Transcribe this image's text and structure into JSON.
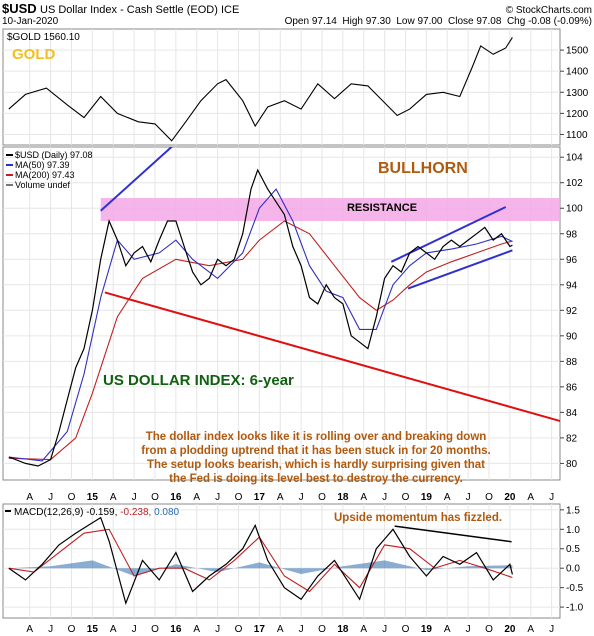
{
  "header": {
    "ticker": "$USD",
    "name": "US Dollar Index - Cash Settle (EOD) ICE",
    "date": "10-Jan-2020",
    "ohlc": "Open 97.14  High 97.30  Low 97.00  Close 97.08  Chg -0.08 (-0.09%)",
    "source": "© StockCharts.com"
  },
  "colors": {
    "price": "#000000",
    "ma50": "#3030c0",
    "ma200": "#c02020",
    "trend_red": "#e01010",
    "trend_blue": "#3030d0",
    "resistance_band": "#f5a8e6",
    "annotation_orange": "#b05a10",
    "title_green": "#106010",
    "gold_label": "#f0c020",
    "macd_signal": "#2a6ab0",
    "grid": "#e6e6e6"
  },
  "chart_data": [
    {
      "panel": "gold",
      "type": "line",
      "legend": "$GOLD 1560.10",
      "label": "GOLD",
      "yticks": [
        1100,
        1200,
        1300,
        1400,
        1500
      ],
      "ylim": [
        1050,
        1600
      ],
      "series": [
        {
          "name": "$GOLD",
          "x": [
            2014.0,
            2014.2,
            2014.45,
            2014.7,
            2014.9,
            2015.1,
            2015.3,
            2015.55,
            2015.75,
            2015.95,
            2016.1,
            2016.3,
            2016.5,
            2016.6,
            2016.8,
            2016.95,
            2017.1,
            2017.3,
            2017.5,
            2017.7,
            2017.9,
            2018.1,
            2018.3,
            2018.45,
            2018.65,
            2018.8,
            2019.0,
            2019.2,
            2019.4,
            2019.55,
            2019.65,
            2019.8,
            2019.95,
            2020.03
          ],
          "values": [
            1220,
            1290,
            1320,
            1240,
            1180,
            1280,
            1200,
            1160,
            1150,
            1070,
            1150,
            1260,
            1340,
            1360,
            1260,
            1140,
            1230,
            1260,
            1220,
            1340,
            1270,
            1340,
            1330,
            1270,
            1190,
            1220,
            1290,
            1300,
            1280,
            1420,
            1520,
            1480,
            1510,
            1560
          ]
        }
      ]
    },
    {
      "panel": "usd",
      "type": "line",
      "legend": [
        "$USD (Daily) 97.08",
        "MA(50) 97.39",
        "MA(200) 97.43",
        "Volume undef"
      ],
      "yticks": [
        80,
        82,
        84,
        86,
        88,
        90,
        92,
        94,
        96,
        98,
        100,
        102,
        104
      ],
      "ylim": [
        78.7,
        104.8
      ],
      "series": [
        {
          "name": "$USD (Daily)",
          "x": [
            2014.0,
            2014.2,
            2014.35,
            2014.5,
            2014.6,
            2014.7,
            2014.8,
            2014.9,
            2015.0,
            2015.1,
            2015.2,
            2015.3,
            2015.4,
            2015.5,
            2015.6,
            2015.7,
            2015.8,
            2015.9,
            2016.0,
            2016.1,
            2016.2,
            2016.3,
            2016.4,
            2016.5,
            2016.6,
            2016.7,
            2016.8,
            2016.9,
            2016.98,
            2017.1,
            2017.2,
            2017.3,
            2017.4,
            2017.5,
            2017.6,
            2017.7,
            2017.8,
            2017.9,
            2018.0,
            2018.1,
            2018.2,
            2018.3,
            2018.4,
            2018.5,
            2018.6,
            2018.7,
            2018.8,
            2018.9,
            2019.0,
            2019.1,
            2019.2,
            2019.3,
            2019.4,
            2019.5,
            2019.6,
            2019.7,
            2019.8,
            2019.9,
            2020.0,
            2020.03
          ],
          "values": [
            80.5,
            80.0,
            79.8,
            80.3,
            82.5,
            85.0,
            87.5,
            89.0,
            92.0,
            96.0,
            99.0,
            97.5,
            95.5,
            96.5,
            97.0,
            95.8,
            97.5,
            99.0,
            99.0,
            97.0,
            95.0,
            94.0,
            94.5,
            96.0,
            95.5,
            96.0,
            98.0,
            101.5,
            103.0,
            101.5,
            100.5,
            99.5,
            97.0,
            95.5,
            93.0,
            92.5,
            94.0,
            93.0,
            92.5,
            90.0,
            89.5,
            89.0,
            91.5,
            94.5,
            95.5,
            95.0,
            96.5,
            97.0,
            96.5,
            96.0,
            97.0,
            97.5,
            97.0,
            97.5,
            98.0,
            98.5,
            97.5,
            98.0,
            97.0,
            97.1
          ]
        },
        {
          "name": "MA(50)",
          "x": [
            2014.0,
            2014.4,
            2014.7,
            2014.9,
            2015.1,
            2015.3,
            2015.5,
            2015.8,
            2016.0,
            2016.2,
            2016.5,
            2016.8,
            2017.0,
            2017.2,
            2017.4,
            2017.6,
            2017.8,
            2018.0,
            2018.2,
            2018.4,
            2018.6,
            2018.8,
            2019.0,
            2019.3,
            2019.6,
            2019.9,
            2020.03
          ],
          "values": [
            80.5,
            80.2,
            82.5,
            87.0,
            93.0,
            97.5,
            96.0,
            96.5,
            97.5,
            96.0,
            94.5,
            96.5,
            100.0,
            101.5,
            99.0,
            95.5,
            93.5,
            93.0,
            90.5,
            90.5,
            94.0,
            95.5,
            96.5,
            96.8,
            97.2,
            97.8,
            97.39
          ]
        },
        {
          "name": "MA(200)",
          "x": [
            2014.0,
            2014.5,
            2014.8,
            2015.0,
            2015.3,
            2015.6,
            2016.0,
            2016.4,
            2016.8,
            2017.0,
            2017.3,
            2017.6,
            2017.9,
            2018.2,
            2018.4,
            2018.6,
            2018.8,
            2019.0,
            2019.3,
            2019.6,
            2019.9,
            2020.03
          ],
          "values": [
            80.4,
            80.3,
            82.0,
            85.5,
            91.5,
            94.5,
            96.0,
            95.5,
            96.0,
            97.5,
            99.0,
            98.0,
            95.5,
            93.0,
            92.0,
            92.8,
            94.0,
            95.0,
            95.8,
            96.5,
            97.2,
            97.43
          ]
        }
      ],
      "annotations": {
        "bullhorn": "BULLHORN",
        "resistance": "RESISTANCE",
        "index_title": "US DOLLAR INDEX: 6-year",
        "commentary": [
          "The dollar index looks like it is rolling over and breaking down",
          "from a plodding uptrend that it has been stuck in for 20 months.",
          "The setup looks bearish, which is hardly surprising given that",
          "the Fed is doing its level best to destroy the currency."
        ]
      },
      "resistance_zone": [
        99.0,
        100.8
      ],
      "trendlines": [
        {
          "name": "bullhorn-upper",
          "x": [
            2015.1,
            2018.1
          ],
          "values": [
            99.8,
            117.5
          ]
        },
        {
          "name": "bullhorn-lower",
          "x": [
            2015.15,
            2021.1
          ],
          "values": [
            93.4,
            82.4
          ]
        },
        {
          "name": "channel-upper",
          "x": [
            2018.58,
            2019.95
          ],
          "values": [
            95.8,
            100.1
          ]
        },
        {
          "name": "channel-lower",
          "x": [
            2018.78,
            2020.03
          ],
          "values": [
            93.7,
            96.7
          ]
        }
      ]
    },
    {
      "panel": "macd",
      "type": "line",
      "legend": {
        "label": "MACD(12,26,9)",
        "macd": "-0.159",
        "signal": "-0.238",
        "histogram": "0.080"
      },
      "annotation": "Upside momentum has fizzled.",
      "yticks": [
        "1.5",
        "1.0",
        "0.5",
        "0.0",
        "-0.5",
        "-1.0"
      ],
      "ylim": [
        -1.28,
        1.65
      ],
      "series": [
        {
          "name": "MACD",
          "x": [
            2014.0,
            2014.2,
            2014.4,
            2014.6,
            2014.8,
            2014.95,
            2015.1,
            2015.2,
            2015.4,
            2015.6,
            2015.8,
            2016.0,
            2016.2,
            2016.4,
            2016.6,
            2016.8,
            2016.95,
            2017.1,
            2017.3,
            2017.5,
            2017.7,
            2017.9,
            2018.05,
            2018.2,
            2018.4,
            2018.6,
            2018.8,
            2019.0,
            2019.2,
            2019.4,
            2019.6,
            2019.8,
            2020.0,
            2020.03
          ],
          "values": [
            0.0,
            -0.3,
            0.1,
            0.6,
            0.9,
            1.1,
            1.3,
            0.7,
            -0.9,
            0.2,
            -0.3,
            0.4,
            -0.6,
            -0.2,
            0.1,
            0.5,
            1.1,
            0.2,
            -0.5,
            -0.8,
            -0.2,
            0.2,
            -0.3,
            -0.8,
            0.5,
            1.0,
            0.3,
            -0.2,
            0.3,
            0.1,
            0.4,
            -0.3,
            0.1,
            -0.16
          ]
        },
        {
          "name": "Signal",
          "x": [
            2014.0,
            2014.3,
            2014.6,
            2014.9,
            2015.2,
            2015.5,
            2015.8,
            2016.1,
            2016.4,
            2016.7,
            2017.0,
            2017.3,
            2017.6,
            2017.9,
            2018.2,
            2018.5,
            2018.8,
            2019.1,
            2019.4,
            2019.7,
            2020.03
          ],
          "values": [
            0.0,
            -0.1,
            0.4,
            0.9,
            1.0,
            -0.2,
            0.0,
            0.0,
            -0.3,
            0.2,
            0.8,
            -0.2,
            -0.6,
            0.1,
            -0.5,
            0.6,
            0.5,
            0.0,
            0.2,
            0.0,
            -0.24
          ]
        },
        {
          "name": "Histogram",
          "x": [
            2014.0,
            2014.5,
            2015.0,
            2015.5,
            2016.0,
            2016.5,
            2017.0,
            2017.5,
            2018.0,
            2018.5,
            2019.0,
            2019.5,
            2020.03
          ],
          "values": [
            0.0,
            0.05,
            0.2,
            -0.2,
            0.1,
            -0.1,
            0.15,
            -0.15,
            0.05,
            0.2,
            -0.05,
            0.05,
            0.08
          ]
        }
      ],
      "trendline": {
        "x": [
          2018.62,
          2020.02
        ],
        "values": [
          1.08,
          0.68
        ]
      }
    }
  ],
  "x_axis": {
    "month_labels": [
      {
        "label": "A",
        "x": 2014.25
      },
      {
        "label": "J",
        "x": 2014.5
      },
      {
        "label": "O",
        "x": 2014.75
      },
      {
        "label": "15",
        "x": 2015.0
      },
      {
        "label": "A",
        "x": 2015.25
      },
      {
        "label": "J",
        "x": 2015.5
      },
      {
        "label": "O",
        "x": 2015.75
      },
      {
        "label": "16",
        "x": 2016.0
      },
      {
        "label": "A",
        "x": 2016.25
      },
      {
        "label": "J",
        "x": 2016.5
      },
      {
        "label": "O",
        "x": 2016.75
      },
      {
        "label": "17",
        "x": 2017.0
      },
      {
        "label": "A",
        "x": 2017.25
      },
      {
        "label": "J",
        "x": 2017.5
      },
      {
        "label": "O",
        "x": 2017.75
      },
      {
        "label": "18",
        "x": 2018.0
      },
      {
        "label": "A",
        "x": 2018.25
      },
      {
        "label": "J",
        "x": 2018.5
      },
      {
        "label": "O",
        "x": 2018.75
      },
      {
        "label": "19",
        "x": 2019.0
      },
      {
        "label": "A",
        "x": 2019.25
      },
      {
        "label": "J",
        "x": 2019.5
      },
      {
        "label": "O",
        "x": 2019.75
      },
      {
        "label": "20",
        "x": 2020.0
      },
      {
        "label": "A",
        "x": 2020.25
      },
      {
        "label": "J",
        "x": 2020.5
      }
    ]
  }
}
